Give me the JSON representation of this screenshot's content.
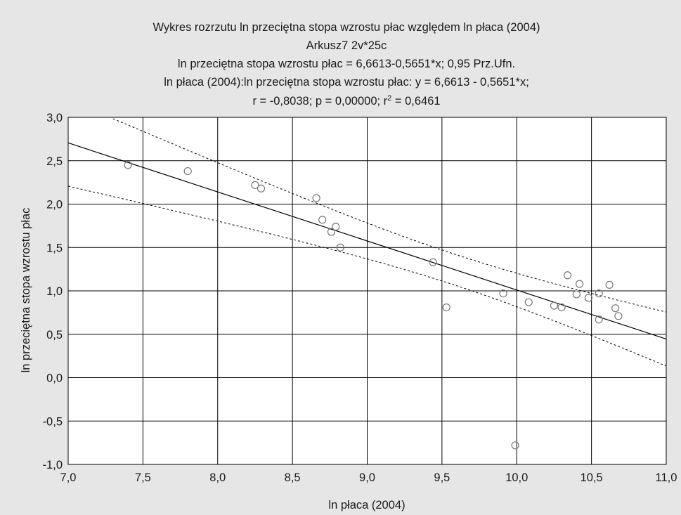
{
  "chart_data": {
    "type": "scatter",
    "title_lines": [
      "Wykres rozrzutu    ln przeciętna stopa wzrostu płac względem ln płaca (2004)",
      "Arkusz7 2v*25c",
      "ln przeciętna stopa wzrostu płac = 6,6613-0,5651*x; 0,95 Prz.Ufn.",
      "ln płaca (2004):ln przeciętna stopa wzrostu płac:   y = 6,6613 - 0,5651*x;"
    ],
    "stats_line": {
      "prefix": "r = -0,8038; p = 0,00000; r",
      "sup": "2",
      "suffix": " = 0,6461"
    },
    "xlabel": "ln płaca (2004)",
    "ylabel": "ln przeciętna stopa wzrostu płac",
    "xlim": [
      7.0,
      11.0
    ],
    "ylim": [
      -1.0,
      3.0
    ],
    "x_ticks": [
      "7,0",
      "7,5",
      "8,0",
      "8,5",
      "9,0",
      "9,5",
      "10,0",
      "10,5",
      "11,0"
    ],
    "y_ticks": [
      "3,0",
      "2,5",
      "2,0",
      "1,5",
      "1,0",
      "0,5",
      "0,0",
      "-0,5",
      "-1,0"
    ],
    "grid": true,
    "regression": {
      "intercept": 6.6613,
      "slope": -0.5651
    },
    "confidence_level": 0.95,
    "points": [
      [
        7.4,
        2.45
      ],
      [
        7.8,
        2.38
      ],
      [
        8.25,
        2.22
      ],
      [
        8.29,
        2.18
      ],
      [
        8.66,
        2.07
      ],
      [
        8.7,
        1.82
      ],
      [
        8.76,
        1.68
      ],
      [
        8.79,
        1.74
      ],
      [
        8.82,
        1.5
      ],
      [
        9.44,
        1.33
      ],
      [
        9.53,
        0.81
      ],
      [
        9.91,
        0.97
      ],
      [
        9.99,
        -0.78
      ],
      [
        10.08,
        0.87
      ],
      [
        10.25,
        0.83
      ],
      [
        10.3,
        0.81
      ],
      [
        10.34,
        1.18
      ],
      [
        10.4,
        0.96
      ],
      [
        10.42,
        1.08
      ],
      [
        10.48,
        0.92
      ],
      [
        10.55,
        0.97
      ],
      [
        10.55,
        0.67
      ],
      [
        10.62,
        1.07
      ],
      [
        10.66,
        0.8
      ],
      [
        10.68,
        0.71
      ]
    ],
    "colors": {
      "background": "#e6e6e6",
      "plot_area": "#ffffff",
      "grid": "#000000",
      "fit_line": "#000000",
      "confidence_band": "#000000",
      "point_stroke": "#777777"
    }
  }
}
